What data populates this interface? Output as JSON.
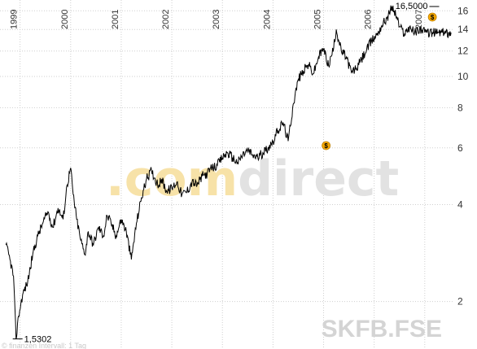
{
  "chart_data": {
    "type": "line",
    "symbol": "SKFB.FSE",
    "watermark": {
      "part1": ".com",
      "part2": "direct"
    },
    "footer_text": "© finanzen Intervall: 1 Tag",
    "y_scale": "log",
    "ylim": [
      1.5,
      16.5
    ],
    "y_ticks": [
      2,
      4,
      6,
      8,
      10,
      12,
      14,
      16
    ],
    "x_range": [
      1998.7,
      2007.55
    ],
    "x_ticks": [
      "1999",
      "2000",
      "2001",
      "2002",
      "2003",
      "2004",
      "2005",
      "2006",
      "2007"
    ],
    "grid": true,
    "series": [
      {
        "x": [
          1998.72,
          1998.8,
          1998.87,
          1998.92,
          1998.97,
          1999.05,
          1999.15,
          1999.25,
          1999.35,
          1999.45,
          1999.55,
          1999.65,
          1999.75,
          1999.85,
          1999.93,
          2000.0,
          2000.05,
          2000.12,
          2000.2,
          2000.28,
          2000.35,
          2000.45,
          2000.55,
          2000.65,
          2000.72,
          2000.8,
          2000.9,
          2001.0,
          2001.1,
          2001.2,
          2001.3,
          2001.4,
          2001.5,
          2001.6,
          2001.7,
          2001.75,
          2001.8,
          2001.9,
          2002.0,
          2002.1,
          2002.2,
          2002.3,
          2002.4,
          2002.5,
          2002.6,
          2002.7,
          2002.8,
          2002.9,
          2003.0,
          2003.1,
          2003.2,
          2003.3,
          2003.4,
          2003.5,
          2003.6,
          2003.7,
          2003.8,
          2003.9,
          2004.0,
          2004.1,
          2004.2,
          2004.3,
          2004.4,
          2004.5,
          2004.6,
          2004.7,
          2004.8,
          2004.9,
          2005.0,
          2005.1,
          2005.2,
          2005.25,
          2005.35,
          2005.45,
          2005.55,
          2005.65,
          2005.75,
          2005.85,
          2005.95,
          2006.05,
          2006.15,
          2006.25,
          2006.3,
          2006.35,
          2006.45,
          2006.5,
          2006.6,
          2006.7,
          2006.8,
          2006.9,
          2007.0,
          2007.1,
          2007.15,
          2007.22,
          2007.28,
          2007.35,
          2007.42,
          2007.48,
          2007.52
        ],
        "values": [
          3.0,
          2.7,
          2.4,
          1.53,
          1.8,
          2.1,
          2.3,
          2.8,
          3.2,
          3.5,
          3.8,
          3.4,
          3.9,
          3.6,
          4.6,
          5.2,
          4.3,
          3.6,
          3.1,
          2.8,
          3.3,
          3.0,
          3.4,
          3.2,
          3.7,
          3.5,
          3.2,
          3.6,
          3.3,
          2.7,
          3.5,
          4.2,
          4.8,
          5.1,
          4.7,
          4.6,
          4.8,
          4.4,
          4.5,
          4.7,
          4.3,
          4.4,
          4.7,
          4.6,
          4.9,
          5.0,
          5.2,
          5.3,
          5.6,
          5.8,
          5.6,
          5.4,
          5.7,
          5.9,
          5.7,
          5.6,
          5.8,
          6.0,
          6.3,
          6.8,
          7.2,
          6.3,
          8.2,
          9.8,
          10.4,
          10.9,
          10.2,
          11.5,
          12.2,
          10.8,
          12.3,
          14.0,
          12.0,
          11.5,
          10.3,
          10.6,
          11.3,
          12.1,
          12.9,
          13.5,
          14.4,
          15.2,
          15.7,
          16.5,
          15.3,
          14.3,
          13.6,
          14.3,
          13.7,
          14.1,
          13.7,
          13.7,
          13.7,
          13.7,
          13.7,
          13.7,
          13.7,
          13.7,
          13.7
        ]
      }
    ],
    "markers": [
      {
        "x": 2005.05,
        "y": 6.1,
        "label": "$"
      },
      {
        "x": 2007.15,
        "y": 15.3,
        "label": "$"
      }
    ],
    "annotations": {
      "max": {
        "label": "16,5000",
        "x": 2007.22,
        "y": 16.5
      },
      "min": {
        "label": "1,5302",
        "x": 1998.92,
        "y": 1.53
      }
    }
  }
}
